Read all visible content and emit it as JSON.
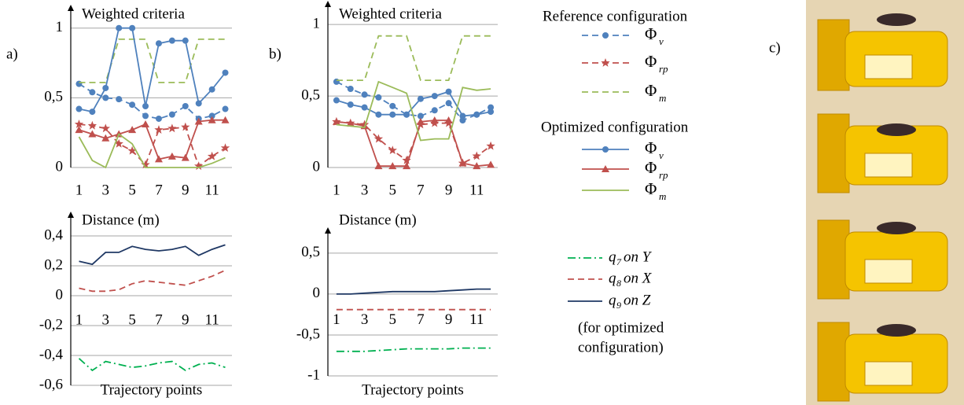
{
  "panel_labels": [
    "a)",
    "b)",
    "c)"
  ],
  "legend_titles": [
    "Reference configuration",
    "Optimized configuration"
  ],
  "note": [
    "(for optimized",
    "configuration)"
  ],
  "chart_data": [
    {
      "type": "line",
      "title": "Weighted criteria",
      "categories": [
        1,
        null,
        3,
        null,
        5,
        null,
        7,
        null,
        9,
        null,
        11,
        null
      ],
      "ylim": [
        0,
        1.1
      ],
      "yticks": [
        0,
        {
          "value": 0.5,
          "label": "0,5"
        },
        1
      ],
      "grid": true,
      "series": [
        {
          "name": "Φ",
          "subscript": "v",
          "color": "#4f81bd",
          "dash": "dashed",
          "marker": "circle",
          "values": [
            0.6,
            0.54,
            0.5,
            0.49,
            0.45,
            0.37,
            0.35,
            0.38,
            0.44,
            0.35,
            0.37,
            0.42
          ]
        },
        {
          "name": "Φ",
          "subscript": "rp",
          "color": "#c0504d",
          "dash": "dashed",
          "marker": "star",
          "values": [
            0.31,
            0.3,
            0.28,
            0.17,
            0.12,
            0.02,
            0.27,
            0.28,
            0.29,
            0.01,
            0.08,
            0.14
          ]
        },
        {
          "name": "Φ",
          "subscript": "m",
          "color": "#9bbb59",
          "dash": "dashed",
          "marker": "none",
          "values": [
            0.61,
            0.61,
            0.61,
            0.92,
            0.92,
            0.92,
            0.61,
            0.61,
            0.61,
            0.92,
            0.92,
            0.92
          ]
        },
        {
          "name": "Φ",
          "subscript": "v",
          "color": "#4f81bd",
          "dash": "solid",
          "marker": "circle",
          "values": [
            0.42,
            0.4,
            0.57,
            1.0,
            1.0,
            0.44,
            0.89,
            0.91,
            0.91,
            0.46,
            0.56,
            0.68
          ]
        },
        {
          "name": "Φ",
          "subscript": "rp",
          "color": "#c0504d",
          "dash": "solid",
          "marker": "triangle",
          "values": [
            0.27,
            0.24,
            0.21,
            0.24,
            0.27,
            0.31,
            0.06,
            0.08,
            0.07,
            0.33,
            0.34,
            0.34
          ]
        },
        {
          "name": "Φ",
          "subscript": "m",
          "color": "#9bbb59",
          "dash": "solid",
          "marker": "none",
          "values": [
            0.22,
            0.05,
            0.0,
            0.24,
            0.17,
            0.0,
            0.0,
            0.0,
            0.0,
            0.0,
            0.03,
            0.07
          ]
        }
      ]
    },
    {
      "type": "line",
      "title": "Weighted criteria",
      "categories": [
        1,
        null,
        3,
        null,
        5,
        null,
        7,
        null,
        9,
        null,
        11,
        null
      ],
      "ylim": [
        0,
        1.1
      ],
      "yticks": [
        0,
        {
          "value": 0.5,
          "label": "0,5"
        },
        1
      ],
      "grid": true,
      "series": [
        {
          "color": "#4f81bd",
          "dash": "dashed",
          "marker": "circle",
          "values": [
            0.6,
            0.55,
            0.51,
            0.49,
            0.43,
            0.37,
            0.36,
            0.4,
            0.45,
            0.33,
            0.37,
            0.42
          ]
        },
        {
          "color": "#c0504d",
          "dash": "dashed",
          "marker": "star",
          "values": [
            0.32,
            0.31,
            0.3,
            0.2,
            0.12,
            0.05,
            0.3,
            0.31,
            0.31,
            0.03,
            0.08,
            0.15
          ]
        },
        {
          "color": "#9bbb59",
          "dash": "dashed",
          "marker": "none",
          "values": [
            0.61,
            0.61,
            0.61,
            0.92,
            0.92,
            0.92,
            0.61,
            0.61,
            0.61,
            0.92,
            0.92,
            0.92
          ]
        },
        {
          "color": "#4f81bd",
          "dash": "solid",
          "marker": "circle",
          "values": [
            0.47,
            0.44,
            0.42,
            0.37,
            0.37,
            0.37,
            0.48,
            0.5,
            0.53,
            0.36,
            0.37,
            0.39
          ]
        },
        {
          "color": "#c0504d",
          "dash": "solid",
          "marker": "triangle",
          "values": [
            0.32,
            0.31,
            0.29,
            0.01,
            0.01,
            0.01,
            0.32,
            0.33,
            0.33,
            0.03,
            0.01,
            0.02
          ]
        },
        {
          "color": "#9bbb59",
          "dash": "solid",
          "marker": "none",
          "values": [
            0.3,
            0.29,
            0.28,
            0.6,
            0.56,
            0.52,
            0.19,
            0.2,
            0.2,
            0.56,
            0.54,
            0.55
          ]
        }
      ]
    },
    {
      "type": "line",
      "title": "Distance (m)",
      "x_label": "Trajectory points",
      "categories": [
        1,
        null,
        3,
        null,
        5,
        null,
        7,
        null,
        9,
        null,
        11,
        null
      ],
      "ylim": [
        -0.6,
        0.5
      ],
      "yticks": [
        {
          "value": -0.6,
          "label": "-0,6"
        },
        {
          "value": -0.4,
          "label": "-0,4"
        },
        {
          "value": -0.2,
          "label": "-0,2"
        },
        0,
        {
          "value": 0.2,
          "label": "0,2"
        },
        {
          "value": 0.4,
          "label": "0,4"
        }
      ],
      "grid": true,
      "series": [
        {
          "name": "q",
          "subscript": "7",
          "suffix": "on Y",
          "color": "#00b050",
          "dash": "dashdot",
          "marker": "none",
          "values": [
            -0.42,
            -0.5,
            -0.44,
            -0.46,
            -0.48,
            -0.47,
            -0.45,
            -0.44,
            -0.5,
            -0.46,
            -0.45,
            -0.48
          ]
        },
        {
          "name": "q",
          "subscript": "8",
          "suffix": "on X",
          "color": "#c0504d",
          "dash": "dashed",
          "marker": "none",
          "values": [
            0.05,
            0.03,
            0.03,
            0.04,
            0.08,
            0.1,
            0.09,
            0.08,
            0.07,
            0.1,
            0.13,
            0.17
          ]
        },
        {
          "name": "q",
          "subscript": "9",
          "suffix": "on Z",
          "color": "#1f3864",
          "dash": "solid",
          "marker": "none",
          "values": [
            0.23,
            0.21,
            0.29,
            0.29,
            0.33,
            0.31,
            0.3,
            0.31,
            0.33,
            0.27,
            0.31,
            0.34
          ]
        }
      ]
    },
    {
      "type": "line",
      "title": "Distance (m)",
      "x_label": "Trajectory points",
      "categories": [
        1,
        null,
        3,
        null,
        5,
        null,
        7,
        null,
        9,
        null,
        11,
        null
      ],
      "ylim": [
        -1,
        0.7
      ],
      "yticks": [
        -1,
        {
          "value": -0.5,
          "label": "-0,5"
        },
        0,
        {
          "value": 0.5,
          "label": "0,5"
        }
      ],
      "grid": true,
      "series": [
        {
          "color": "#00b050",
          "dash": "dashdot",
          "marker": "none",
          "values": [
            -0.7,
            -0.7,
            -0.7,
            -0.69,
            -0.68,
            -0.67,
            -0.67,
            -0.67,
            -0.67,
            -0.66,
            -0.66,
            -0.66
          ]
        },
        {
          "color": "#c0504d",
          "dash": "dashed",
          "marker": "none",
          "values": [
            -0.19,
            -0.19,
            -0.19,
            -0.19,
            -0.19,
            -0.19,
            -0.19,
            -0.19,
            -0.19,
            -0.19,
            -0.19,
            -0.19
          ]
        },
        {
          "color": "#1f3864",
          "dash": "solid",
          "marker": "none",
          "values": [
            0.0,
            0.0,
            0.01,
            0.02,
            0.03,
            0.03,
            0.03,
            0.03,
            0.04,
            0.05,
            0.06,
            0.06
          ]
        }
      ]
    }
  ]
}
